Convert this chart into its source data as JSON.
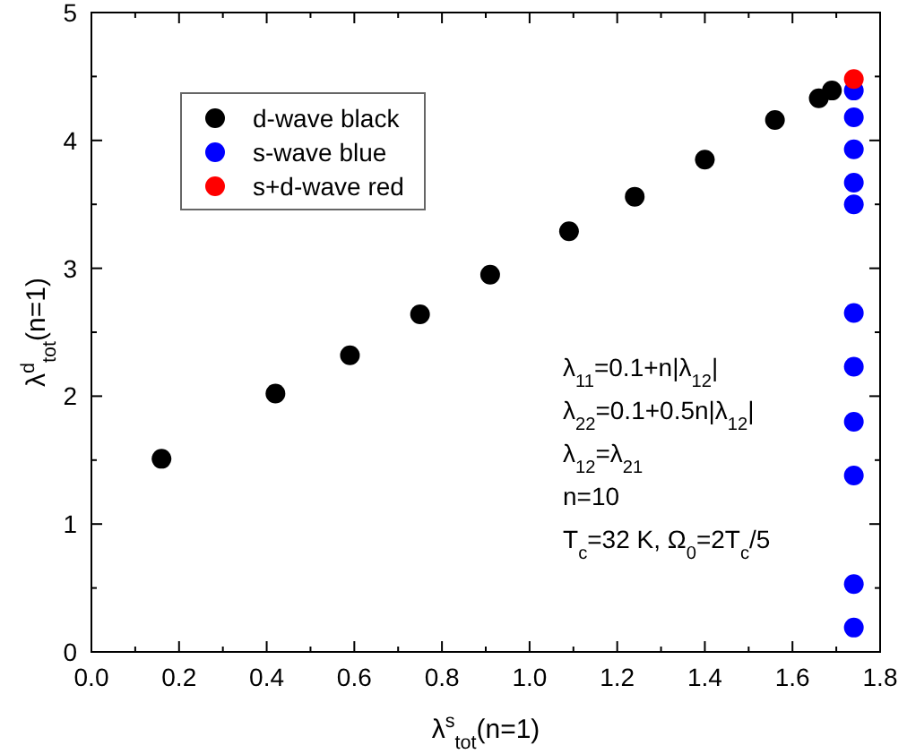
{
  "chart_data": {
    "type": "scatter",
    "xlabel": "λ$^{s}$$_{tot}$(n=1)",
    "ylabel": "λ$^{d}$$_{tot}$(n=1)",
    "xlim": [
      0,
      1.8
    ],
    "xticks": [
      {
        "value": 0,
        "label": "0.0"
      },
      0.2,
      0.4,
      0.6,
      0.8,
      {
        "value": 1,
        "label": "1.0"
      },
      1.2,
      1.4,
      1.6,
      1.8
    ],
    "ylim": [
      0,
      5
    ],
    "yticks": [
      0,
      1,
      2,
      3,
      4,
      5
    ],
    "grid": false,
    "legend": "top left",
    "marker": "circle",
    "series": [
      {
        "name": "d-wave black",
        "color": "#000000",
        "x": [
          0.16,
          0.42,
          0.59,
          0.75,
          0.91,
          1.09,
          1.24,
          1.4,
          1.56,
          1.66,
          1.69
        ],
        "values": [
          1.51,
          2.02,
          2.32,
          2.64,
          2.95,
          3.29,
          3.56,
          3.85,
          4.16,
          4.33,
          4.39
        ]
      },
      {
        "name": "s-wave blue",
        "color": "#0000ff",
        "x": [
          1.74,
          1.74,
          1.74,
          1.74,
          1.74,
          1.74,
          1.74,
          1.74,
          1.74,
          1.74,
          1.74
        ],
        "values": [
          4.39,
          4.18,
          3.93,
          3.67,
          3.5,
          2.65,
          2.23,
          1.8,
          1.38,
          0.53,
          0.19
        ]
      },
      {
        "name": "s+d-wave red",
        "color": "#ff0000",
        "x": [
          1.74
        ],
        "values": [
          4.48
        ]
      }
    ],
    "annotations": [
      "λ$_{11}$=0.1+n|λ$_{12}$|",
      "λ$_{22}$=0.1+0.5n|λ$_{12}$|",
      "λ$_{12}$=λ$_{21}$",
      "n=10",
      "T$_{c}$=32 K, Ω$_{0}$=2T$_{c}$/5"
    ]
  }
}
